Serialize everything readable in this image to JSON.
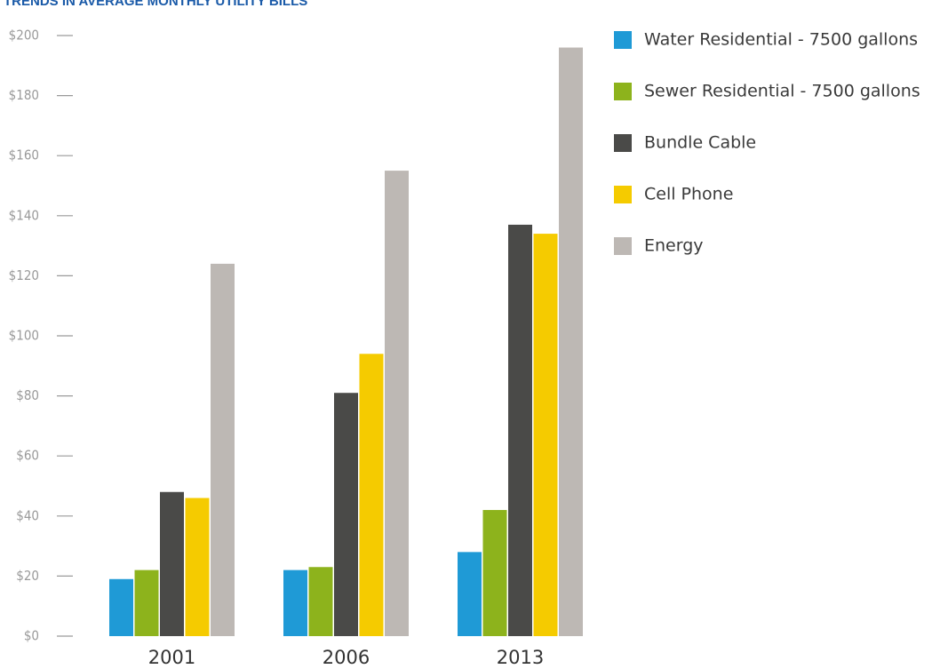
{
  "chart_data": {
    "type": "bar",
    "title": "TRENDS IN AVERAGE MONTHLY UTILITY BILLS",
    "categories": [
      "2001",
      "2006",
      "2013"
    ],
    "series": [
      {
        "name": "Water Residential - 7500 gallons",
        "color": "#1f9ad6",
        "values": [
          19,
          22,
          28
        ]
      },
      {
        "name": "Sewer Residential - 7500 gallons",
        "color": "#8db31c",
        "values": [
          22,
          23,
          42
        ]
      },
      {
        "name": "Bundle Cable",
        "color": "#4a4a48",
        "values": [
          48,
          81,
          137
        ]
      },
      {
        "name": "Cell Phone",
        "color": "#f5cb00",
        "values": [
          46,
          94,
          134
        ]
      },
      {
        "name": "Energy",
        "color": "#bdb8b4",
        "values": [
          124,
          155,
          196
        ]
      }
    ],
    "ylim": [
      0,
      200
    ],
    "yticks": [
      {
        "value": 0,
        "label": "$0"
      },
      {
        "value": 20,
        "label": "$20"
      },
      {
        "value": 40,
        "label": "$40"
      },
      {
        "value": 60,
        "label": "$60"
      },
      {
        "value": 80,
        "label": "$80"
      },
      {
        "value": 100,
        "label": "$100"
      },
      {
        "value": 120,
        "label": "$120"
      },
      {
        "value": 140,
        "label": "$140"
      },
      {
        "value": 160,
        "label": "$160"
      },
      {
        "value": 180,
        "label": "$180"
      },
      {
        "value": 200,
        "label": "$200"
      }
    ],
    "grid": false,
    "legend": "right"
  }
}
